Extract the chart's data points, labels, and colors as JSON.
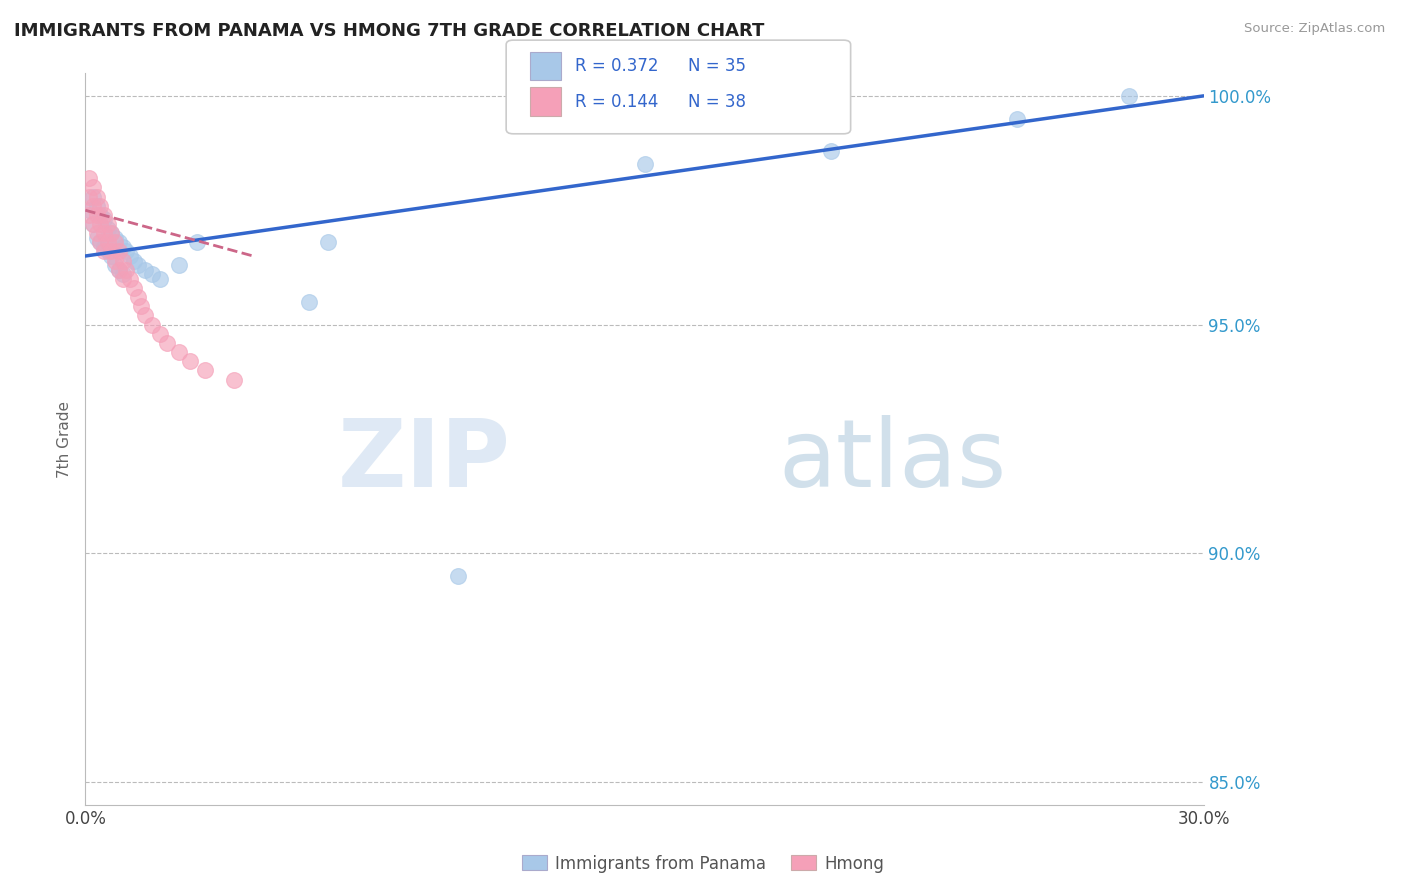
{
  "title": "IMMIGRANTS FROM PANAMA VS HMONG 7TH GRADE CORRELATION CHART",
  "source": "Source: ZipAtlas.com",
  "ylabel": "7th Grade",
  "xlim": [
    0.0,
    0.3
  ],
  "ylim": [
    0.845,
    1.005
  ],
  "xticks": [
    0.0,
    0.05,
    0.1,
    0.15,
    0.2,
    0.25,
    0.3
  ],
  "xtick_labels": [
    "0.0%",
    "",
    "",
    "",
    "",
    "",
    "30.0%"
  ],
  "yticks": [
    0.85,
    0.9,
    0.95,
    1.0
  ],
  "ytick_labels": [
    "85.0%",
    "90.0%",
    "95.0%",
    "100.0%"
  ],
  "legend_labels": [
    "Immigrants from Panama",
    "Hmong"
  ],
  "legend_R_blue": "R = 0.372",
  "legend_N_blue": "N = 35",
  "legend_R_pink": "R = 0.144",
  "legend_N_pink": "N = 38",
  "watermark_zip": "ZIP",
  "watermark_atlas": "atlas",
  "blue_color": "#a8c8e8",
  "pink_color": "#f5a0b8",
  "blue_line_color": "#3366cc",
  "pink_line_color": "#cc6688",
  "blue_scatter_alpha": 0.65,
  "pink_scatter_alpha": 0.65,
  "panama_x": [
    0.001,
    0.002,
    0.002,
    0.003,
    0.003,
    0.004,
    0.004,
    0.005,
    0.005,
    0.006,
    0.006,
    0.007,
    0.007,
    0.008,
    0.008,
    0.009,
    0.009,
    0.01,
    0.01,
    0.011,
    0.012,
    0.013,
    0.014,
    0.016,
    0.018,
    0.02,
    0.025,
    0.03,
    0.06,
    0.065,
    0.1,
    0.15,
    0.2,
    0.25,
    0.28
  ],
  "panama_y": [
    0.975,
    0.978,
    0.972,
    0.976,
    0.969,
    0.974,
    0.968,
    0.973,
    0.967,
    0.971,
    0.966,
    0.97,
    0.965,
    0.969,
    0.963,
    0.968,
    0.962,
    0.967,
    0.961,
    0.966,
    0.965,
    0.964,
    0.963,
    0.962,
    0.961,
    0.96,
    0.963,
    0.968,
    0.955,
    0.968,
    0.895,
    0.985,
    0.988,
    0.995,
    1.0
  ],
  "hmong_x": [
    0.001,
    0.001,
    0.001,
    0.002,
    0.002,
    0.002,
    0.003,
    0.003,
    0.003,
    0.004,
    0.004,
    0.004,
    0.005,
    0.005,
    0.005,
    0.006,
    0.006,
    0.007,
    0.007,
    0.008,
    0.008,
    0.009,
    0.009,
    0.01,
    0.01,
    0.011,
    0.012,
    0.013,
    0.014,
    0.015,
    0.016,
    0.018,
    0.02,
    0.022,
    0.025,
    0.028,
    0.032,
    0.04
  ],
  "hmong_y": [
    0.982,
    0.978,
    0.974,
    0.98,
    0.976,
    0.972,
    0.978,
    0.974,
    0.97,
    0.976,
    0.972,
    0.968,
    0.974,
    0.97,
    0.966,
    0.972,
    0.968,
    0.97,
    0.966,
    0.968,
    0.964,
    0.966,
    0.962,
    0.964,
    0.96,
    0.962,
    0.96,
    0.958,
    0.956,
    0.954,
    0.952,
    0.95,
    0.948,
    0.946,
    0.944,
    0.942,
    0.94,
    0.938
  ],
  "blue_trendline_x": [
    0.0,
    0.3
  ],
  "blue_trendline_y": [
    0.965,
    1.0
  ],
  "pink_trendline_x": [
    0.0,
    0.045
  ],
  "pink_trendline_y": [
    0.975,
    0.965
  ]
}
